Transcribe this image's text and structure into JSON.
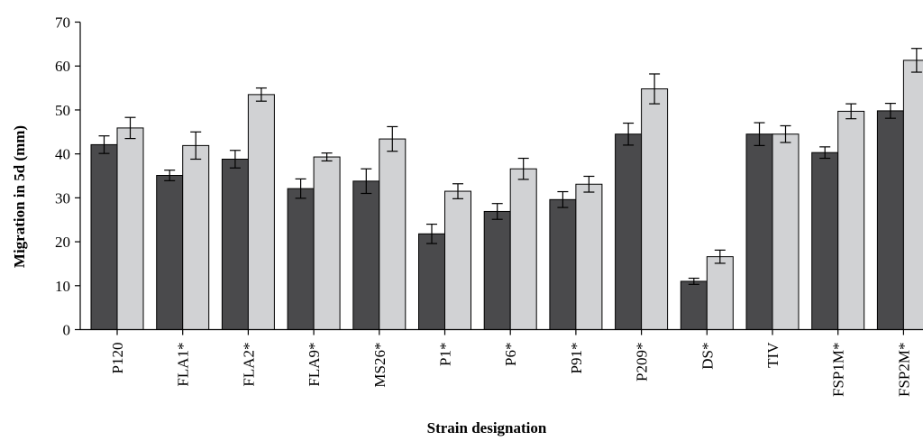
{
  "chart_data": {
    "type": "bar",
    "xlabel": "Strain designation",
    "ylabel": "Migration in 5d (mm)",
    "ylim": [
      0,
      70
    ],
    "yticks": [
      0,
      10,
      20,
      30,
      40,
      50,
      60,
      70
    ],
    "grid": false,
    "categories": [
      "P120",
      "FLA1*",
      "FLA2*",
      "FLA9*",
      "MS26*",
      "P1*",
      "P6*",
      "P91*",
      "P209*",
      "DS*",
      "TIV",
      "FSP1M*",
      "FSP2M*"
    ],
    "series": [
      {
        "color": "#4a4a4c",
        "values": [
          42.1,
          35.1,
          38.8,
          32.1,
          33.8,
          21.8,
          26.9,
          29.6,
          44.5,
          11.0,
          44.5,
          40.3,
          49.8
        ],
        "errors": [
          2.0,
          1.2,
          2.0,
          2.2,
          2.8,
          2.2,
          1.8,
          1.8,
          2.5,
          0.7,
          2.6,
          1.3,
          1.7
        ]
      },
      {
        "color": "#d1d2d4",
        "values": [
          45.9,
          41.9,
          53.5,
          39.3,
          43.4,
          31.5,
          36.6,
          33.1,
          54.8,
          16.6,
          44.5,
          49.7,
          61.3
        ],
        "errors": [
          2.4,
          3.1,
          1.5,
          0.9,
          2.8,
          1.7,
          2.4,
          1.8,
          3.4,
          1.5,
          1.9,
          1.7,
          2.7
        ]
      }
    ]
  }
}
